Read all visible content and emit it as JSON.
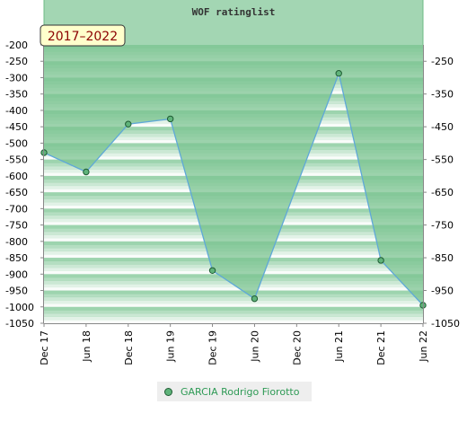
{
  "chart_data": {
    "type": "area",
    "title": "WOF ratinglist",
    "period_badge": "2017–2022",
    "x": [
      "Dec 17",
      "Jun 18",
      "Dec 18",
      "Jun 19",
      "Dec 19",
      "Jun 20",
      "Dec 20",
      "Jun 21",
      "Dec 21",
      "Jun 22"
    ],
    "series": [
      {
        "name": "GARCIA Rodrigo Fiorotto",
        "points": [
          {
            "x": "Dec 17",
            "y": -529
          },
          {
            "x": "Jun 18",
            "y": -588
          },
          {
            "x": "Dec 18",
            "y": -442
          },
          {
            "x": "Jun 19",
            "y": -426
          },
          {
            "x": "Dec 19",
            "y": -889
          },
          {
            "x": "Jun 20",
            "y": -975
          },
          {
            "x": "Jun 21",
            "y": -287
          },
          {
            "x": "Dec 21",
            "y": -858
          },
          {
            "x": "Jun 22",
            "y": -995
          }
        ]
      }
    ],
    "y_left_ticks": [
      -200,
      -250,
      -300,
      -350,
      -400,
      -450,
      -500,
      -550,
      -600,
      -650,
      -700,
      -750,
      -800,
      -850,
      -900,
      -950,
      -1000,
      -1050
    ],
    "y_right_ticks": [
      -250,
      -350,
      -450,
      -550,
      -650,
      -750,
      -850,
      -950,
      -1050
    ],
    "ylim": [
      -1050,
      -200
    ],
    "grid": false,
    "legend_position": "bottom-center",
    "colors": {
      "area_fill": "#7cc492",
      "line": "#5fa8d8",
      "marker": "#5fb37a",
      "marker_edge": "#1f5c33",
      "band_dark": "#8ccda0",
      "band_light": "#ffffff",
      "legend_text": "#2e9a55",
      "badge_bg": "#ffffcc",
      "badge_text": "#8b0000"
    }
  }
}
